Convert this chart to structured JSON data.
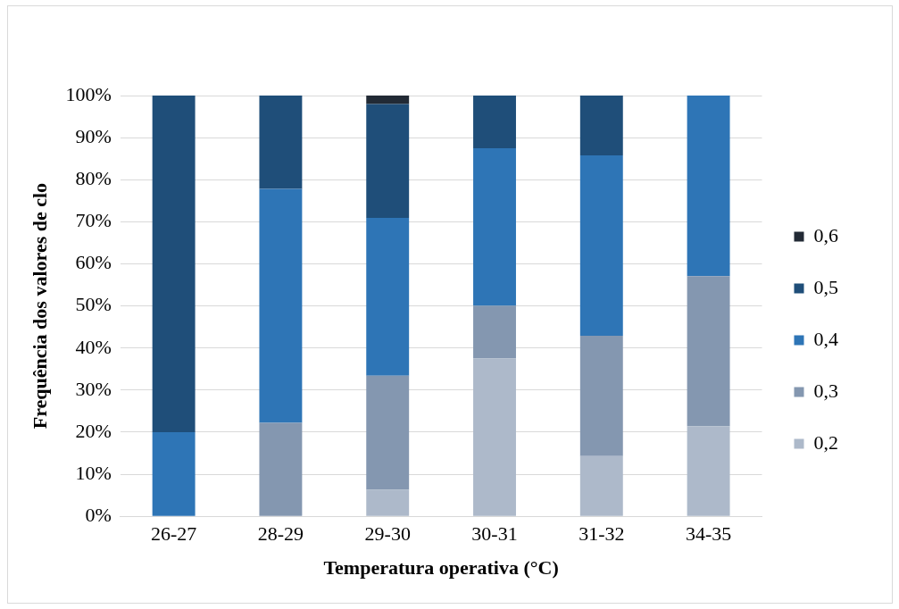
{
  "chart_data": {
    "type": "bar",
    "stacked": true,
    "xlabel": "Temperatura operativa (°C)",
    "ylabel": "Frequência dos valores de clo",
    "categories": [
      "26-27",
      "28-29",
      "29-30",
      "30-31",
      "31-32",
      "34-35"
    ],
    "series": [
      {
        "name": "0,2",
        "color": "#adb9ca",
        "values": [
          0,
          0,
          6.3,
          37.5,
          14.3,
          21.4
        ]
      },
      {
        "name": "0,3",
        "color": "#8497b0",
        "values": [
          0,
          22.2,
          27.1,
          12.5,
          28.6,
          35.7
        ]
      },
      {
        "name": "0,4",
        "color": "#2e75b6",
        "values": [
          20,
          55.6,
          37.5,
          37.5,
          42.9,
          42.9
        ]
      },
      {
        "name": "0,5",
        "color": "#1f4e79",
        "values": [
          80,
          22.2,
          27.1,
          12.5,
          14.3,
          0
        ]
      },
      {
        "name": "0,6",
        "color": "#222a35",
        "values": [
          0,
          0,
          2.0,
          0,
          0,
          0
        ]
      }
    ],
    "ylim": [
      0,
      100
    ],
    "yticks": [
      {
        "value": 0,
        "label": "0%"
      },
      {
        "value": 10,
        "label": "10%"
      },
      {
        "value": 20,
        "label": "20%"
      },
      {
        "value": 30,
        "label": "30%"
      },
      {
        "value": 40,
        "label": "40%"
      },
      {
        "value": 50,
        "label": "50%"
      },
      {
        "value": 60,
        "label": "60%"
      },
      {
        "value": 70,
        "label": "70%"
      },
      {
        "value": 80,
        "label": "80%"
      },
      {
        "value": 90,
        "label": "90%"
      },
      {
        "value": 100,
        "label": "100%"
      }
    ],
    "grid": "y",
    "legend": "right"
  }
}
